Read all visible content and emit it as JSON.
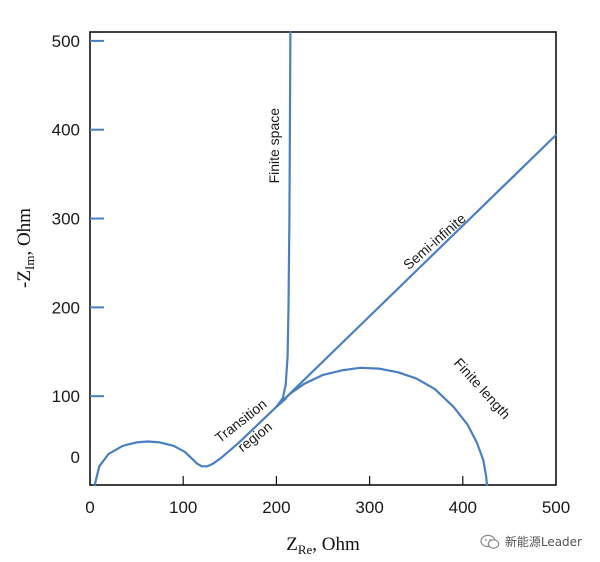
{
  "chart_data": {
    "type": "line",
    "xlabel": "Z",
    "xlabel_sub": "Re",
    "xlabel_unit": ", Ohm",
    "ylabel_prefix": "-Z",
    "ylabel_sub": "Im",
    "ylabel_unit": ", Ohm",
    "xlim": [
      0,
      500
    ],
    "ylim": [
      0,
      510
    ],
    "x_ticks": [
      0,
      100,
      200,
      300,
      400,
      500
    ],
    "y_ticks": [
      0,
      100,
      200,
      300,
      400,
      500
    ],
    "y_tick_labels": [
      {
        "value": 0,
        "label": "0"
      },
      {
        "value": 100,
        "label": "100"
      },
      {
        "value": 200,
        "label": "200"
      },
      {
        "value": 300,
        "label": "300"
      },
      {
        "value": 400,
        "label": "400"
      },
      {
        "value": 500,
        "label": "500"
      }
    ],
    "x_tick_labels": [
      {
        "value": 0,
        "label": "0"
      },
      {
        "value": 100,
        "label": "100"
      },
      {
        "value": 200,
        "label": "200"
      },
      {
        "value": 300,
        "label": "300"
      },
      {
        "value": 400,
        "label": "400"
      },
      {
        "value": 500,
        "label": "500"
      }
    ],
    "grid": false,
    "line_color": "#4a7fc1",
    "series": [
      {
        "points": [
          [
            5,
            0
          ],
          [
            10,
            21
          ],
          [
            20,
            35
          ],
          [
            35,
            44
          ],
          [
            50,
            48
          ],
          [
            62,
            49
          ],
          [
            75,
            48
          ],
          [
            90,
            44
          ],
          [
            102,
            37
          ],
          [
            110,
            29
          ],
          [
            115,
            24
          ],
          [
            120,
            21
          ],
          [
            126,
            21
          ],
          [
            132,
            24
          ],
          [
            140,
            30
          ],
          [
            160,
            48
          ],
          [
            180,
            68
          ],
          [
            200,
            88
          ],
          [
            210,
            97
          ]
        ]
      },
      {
        "points": [
          [
            200,
            88
          ],
          [
            207,
            98
          ],
          [
            210,
            113
          ],
          [
            212,
            145
          ],
          [
            213,
            200
          ],
          [
            214,
            300
          ],
          [
            214.5,
            400
          ],
          [
            215,
            510
          ]
        ]
      },
      {
        "points": [
          [
            200,
            88
          ],
          [
            500,
            394
          ]
        ]
      },
      {
        "points": [
          [
            200,
            88
          ],
          [
            215,
            103
          ],
          [
            230,
            114
          ],
          [
            250,
            124
          ],
          [
            270,
            129
          ],
          [
            290,
            132
          ],
          [
            310,
            131
          ],
          [
            330,
            127
          ],
          [
            350,
            120
          ],
          [
            370,
            108
          ],
          [
            390,
            88
          ],
          [
            405,
            68
          ],
          [
            415,
            48
          ],
          [
            422,
            28
          ],
          [
            425,
            10
          ],
          [
            426,
            0
          ]
        ]
      }
    ],
    "annotations": [
      {
        "text": "Finite space",
        "x": 203,
        "y": 382,
        "rotate": -90
      },
      {
        "text": "Semi-infinite",
        "x": 373,
        "y": 270,
        "rotate": -41
      },
      {
        "text": "Finite length",
        "x": 417,
        "y": 105,
        "rotate": 48
      },
      {
        "text": "Transition",
        "x": 165,
        "y": 68,
        "rotate": -38
      },
      {
        "text": "region",
        "x": 180,
        "y": 50,
        "rotate": -38
      }
    ]
  },
  "watermark": {
    "icon": "wechat-icon",
    "text": "新能源Leader"
  }
}
